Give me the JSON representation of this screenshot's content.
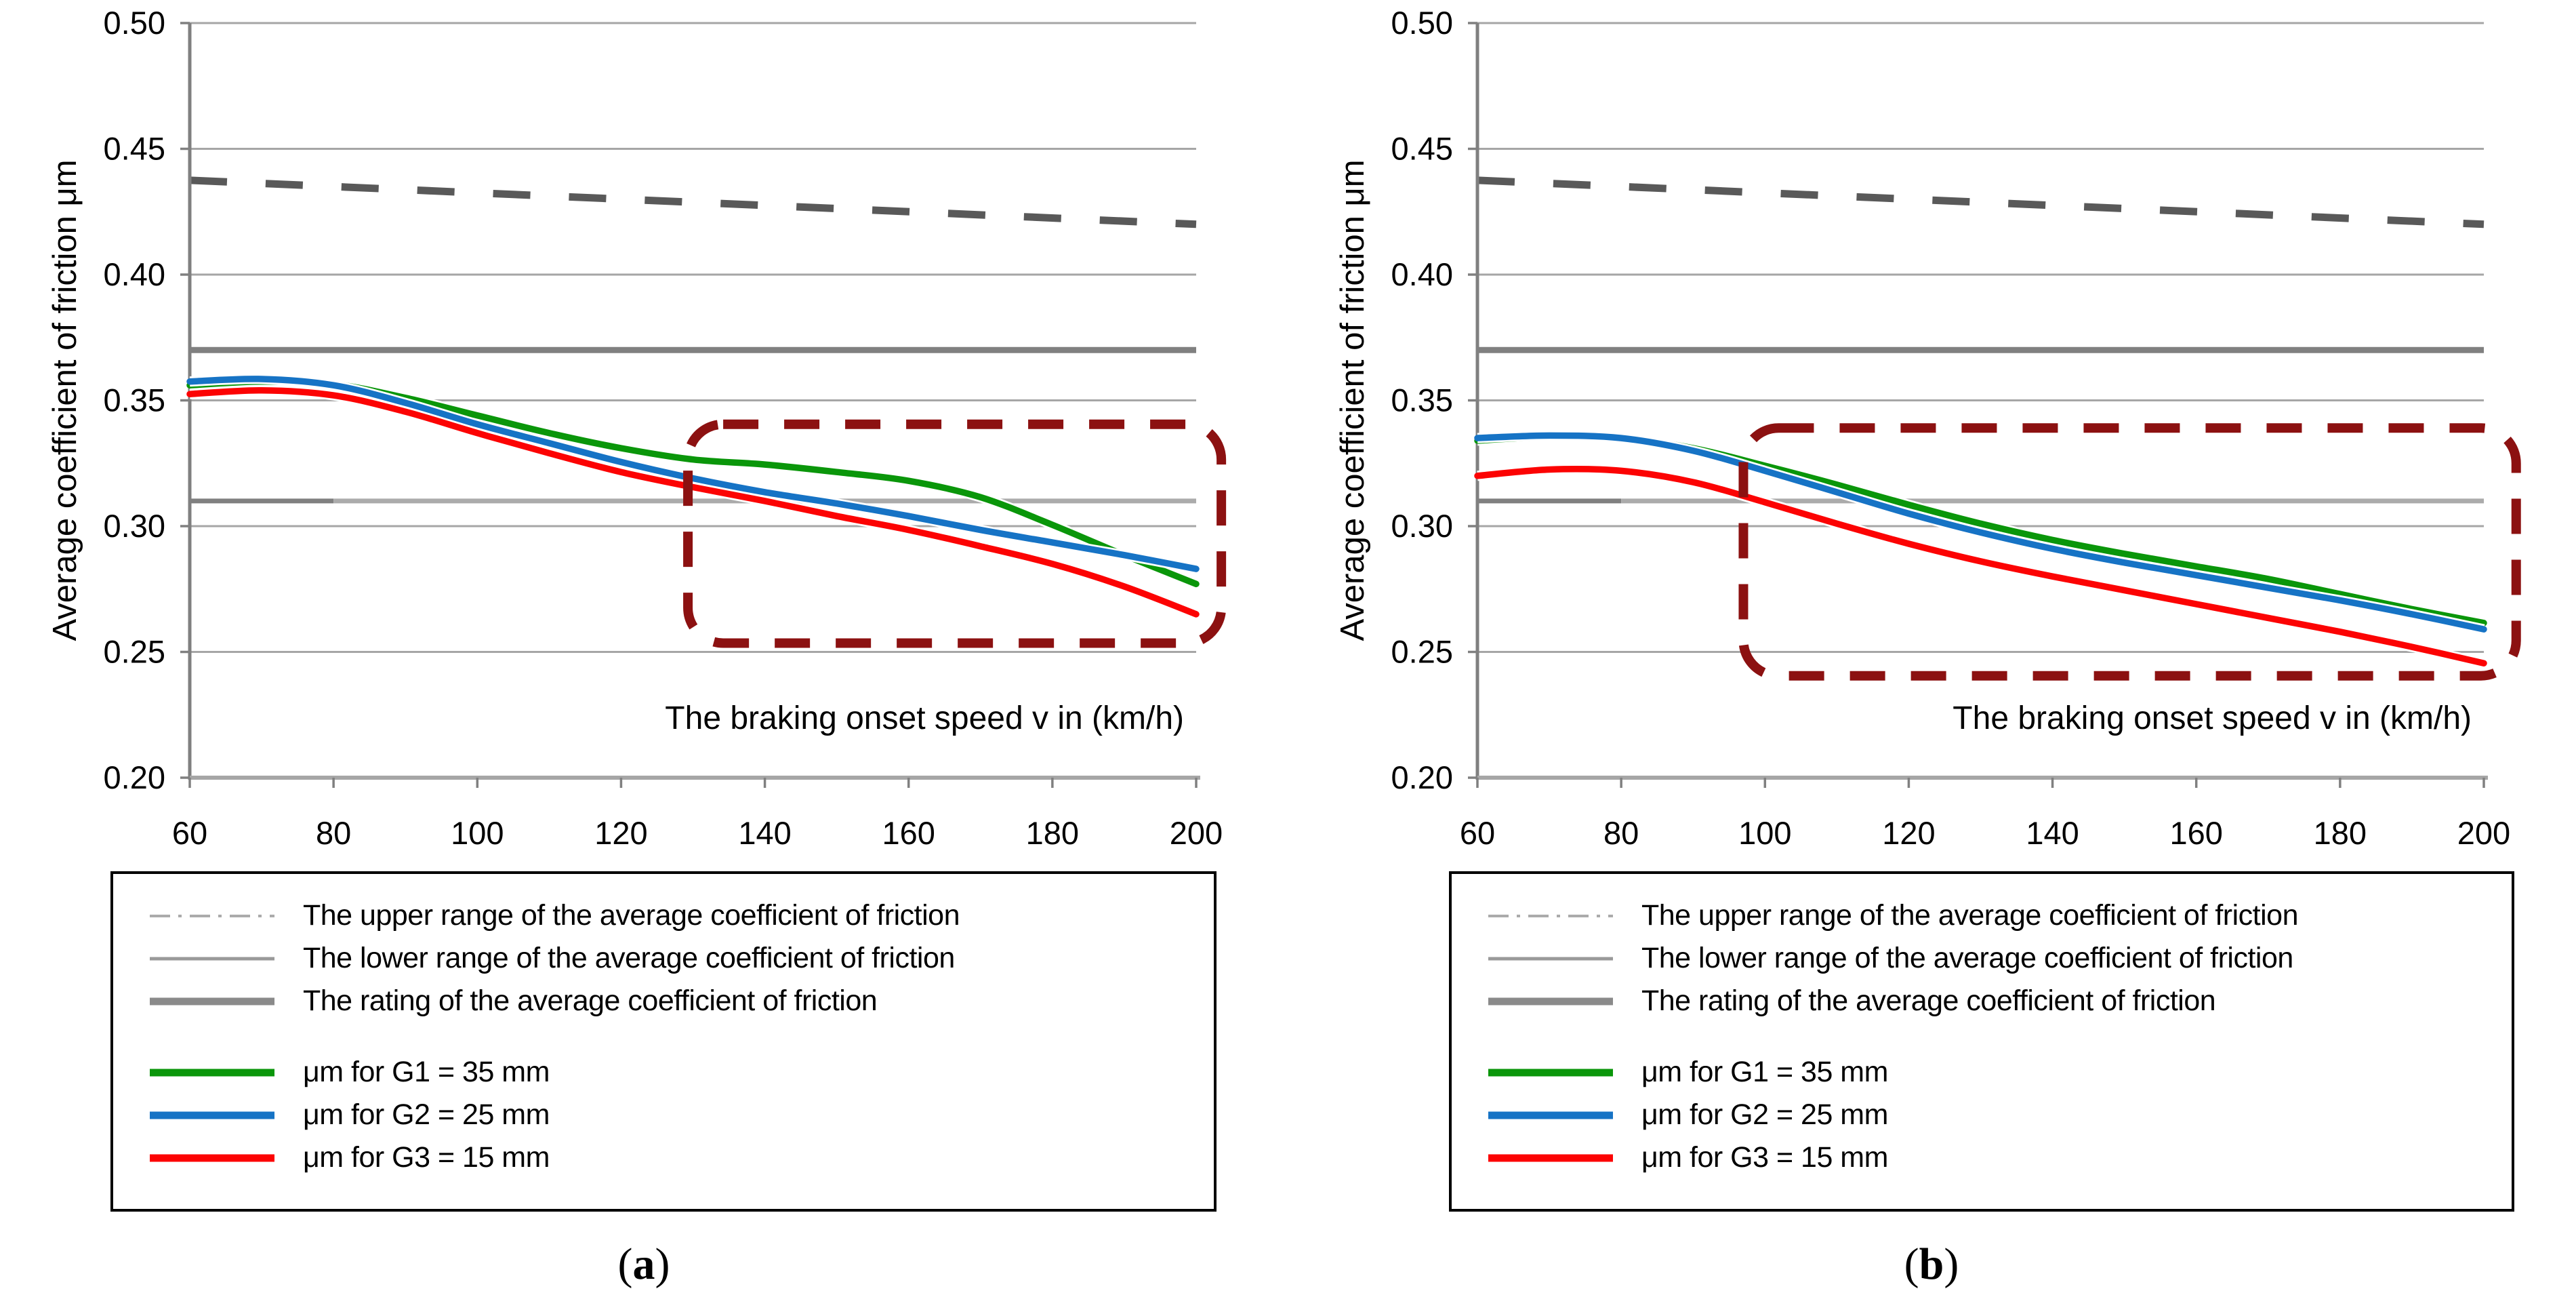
{
  "chart_data": [
    {
      "type": "line",
      "name": "a",
      "caption": {
        "open": "(",
        "letter": "a",
        "close": ")"
      },
      "x_axis": {
        "title": "The braking onset speed v in (km/h)",
        "min": 60,
        "max": 200,
        "ticks": [
          60,
          80,
          100,
          120,
          140,
          160,
          180,
          200
        ]
      },
      "y_axis": {
        "title": "Average coefficient of friction μm",
        "min": 0.2,
        "max": 0.5,
        "ticks": [
          {
            "v": 0.5,
            "label": "0.50"
          },
          {
            "v": 0.45,
            "label": "0.45"
          },
          {
            "v": 0.4,
            "label": "0.40"
          },
          {
            "v": 0.35,
            "label": "0.35"
          },
          {
            "v": 0.3,
            "label": "0.30"
          },
          {
            "v": 0.25,
            "label": "0.25"
          },
          {
            "v": 0.2,
            "label": "0.20"
          }
        ]
      },
      "grid": "horizontal",
      "x": [
        60,
        70,
        80,
        90,
        100,
        110,
        120,
        130,
        140,
        150,
        160,
        170,
        180,
        190,
        200
      ],
      "series": [
        {
          "name": "μm for G1 = 35 mm",
          "color": "#0A960A",
          "values": [
            0.356,
            0.3575,
            0.3565,
            0.351,
            0.344,
            0.337,
            0.331,
            0.3265,
            0.3245,
            0.3215,
            0.318,
            0.3115,
            0.3005,
            0.2885,
            0.277
          ]
        },
        {
          "name": "μm for G2 = 25 mm",
          "color": "#1673C5",
          "values": [
            0.3575,
            0.3585,
            0.356,
            0.349,
            0.3405,
            0.333,
            0.3255,
            0.319,
            0.3135,
            0.309,
            0.304,
            0.2985,
            0.2935,
            0.2885,
            0.283
          ]
        },
        {
          "name": "μm for G3 = 15 mm",
          "color": "#FC0303",
          "values": [
            0.3525,
            0.354,
            0.352,
            0.3455,
            0.337,
            0.329,
            0.3215,
            0.3155,
            0.31,
            0.304,
            0.2985,
            0.292,
            0.285,
            0.276,
            0.265
          ]
        }
      ],
      "ref_lines": {
        "upper_range": {
          "label": "The upper range of the average coefficient of friction",
          "style": "dashed",
          "color": "#595959",
          "points": [
            [
              60,
              0.4375
            ],
            [
              200,
              0.42
            ]
          ]
        },
        "rating": {
          "label": "The rating of the average coefficient of friction",
          "style": "solid-thick",
          "color": "#808080",
          "value": 0.37
        },
        "lower_range": {
          "label": "The lower range of the average coefficient of friction",
          "style": "solid",
          "value": 0.31,
          "segments": [
            {
              "from": 60,
              "to": 80,
              "color": "#808080"
            },
            {
              "from": 80,
              "to": 200,
              "color": "#ABABAB"
            }
          ]
        }
      },
      "highlight_box": {
        "v0": 129.3,
        "v1": 203.5,
        "u0": 0.2535,
        "u1": 0.3405,
        "color": "#8C1111"
      }
    },
    {
      "type": "line",
      "name": "b",
      "caption": {
        "open": "(",
        "letter": "b",
        "close": ")"
      },
      "x_axis": {
        "title": "The braking onset speed v in (km/h)",
        "min": 60,
        "max": 200,
        "ticks": [
          60,
          80,
          100,
          120,
          140,
          160,
          180,
          200
        ]
      },
      "y_axis": {
        "title": "Average coefficient of friction μm",
        "min": 0.2,
        "max": 0.5,
        "ticks": [
          {
            "v": 0.5,
            "label": "0.50"
          },
          {
            "v": 0.45,
            "label": "0.45"
          },
          {
            "v": 0.4,
            "label": "0.40"
          },
          {
            "v": 0.35,
            "label": "0.35"
          },
          {
            "v": 0.3,
            "label": "0.30"
          },
          {
            "v": 0.25,
            "label": "0.25"
          },
          {
            "v": 0.2,
            "label": "0.20"
          }
        ]
      },
      "grid": "horizontal",
      "x": [
        60,
        70,
        80,
        90,
        100,
        110,
        120,
        130,
        140,
        150,
        160,
        170,
        180,
        190,
        200
      ],
      "series": [
        {
          "name": "μm for G1 = 35 mm",
          "color": "#0A960A",
          "values": [
            0.334,
            0.3355,
            0.335,
            0.331,
            0.324,
            0.3165,
            0.3085,
            0.301,
            0.2945,
            0.289,
            0.284,
            0.279,
            0.273,
            0.267,
            0.2615
          ]
        },
        {
          "name": "μm for G2 = 25 mm",
          "color": "#1673C5",
          "values": [
            0.335,
            0.336,
            0.335,
            0.33,
            0.322,
            0.3135,
            0.305,
            0.2975,
            0.291,
            0.2855,
            0.2805,
            0.2755,
            0.2705,
            0.265,
            0.259
          ]
        },
        {
          "name": "μm for G3 = 15 mm",
          "color": "#FC0303",
          "values": [
            0.32,
            0.3225,
            0.322,
            0.3175,
            0.3095,
            0.301,
            0.293,
            0.286,
            0.28,
            0.2745,
            0.269,
            0.2635,
            0.258,
            0.252,
            0.2455
          ]
        }
      ],
      "ref_lines": {
        "upper_range": {
          "label": "The upper range of the average coefficient of friction",
          "style": "dashed",
          "color": "#595959",
          "points": [
            [
              60,
              0.4375
            ],
            [
              200,
              0.42
            ]
          ]
        },
        "rating": {
          "label": "The rating of the average coefficient of friction",
          "style": "solid-thick",
          "color": "#808080",
          "value": 0.37
        },
        "lower_range": {
          "label": "The lower range of the average coefficient of friction",
          "style": "solid",
          "value": 0.31,
          "segments": [
            {
              "from": 60,
              "to": 80,
              "color": "#808080"
            },
            {
              "from": 80,
              "to": 200,
              "color": "#ABABAB"
            }
          ]
        }
      },
      "highlight_box": {
        "v0": 97.0,
        "v1": 204.5,
        "u0": 0.2405,
        "u1": 0.339,
        "color": "#8C1111"
      }
    }
  ],
  "legend": {
    "items": [
      {
        "label": "The upper range of the average coefficient of friction",
        "style": "dash-dot",
        "color": "#ABABAB",
        "width": 4,
        "group": "reference"
      },
      {
        "label": "The lower range of the average coefficient of friction",
        "style": "solid",
        "color": "#999999",
        "width": 5,
        "group": "reference"
      },
      {
        "label": "The rating of the average coefficient of friction",
        "style": "solid",
        "color": "#8A8A8A",
        "width": 11,
        "group": "reference"
      },
      {
        "label": "μm for G1 = 35 mm",
        "style": "solid",
        "color": "#0A960A",
        "width": 11,
        "group": "series"
      },
      {
        "label": "μm for G2 = 25 mm",
        "style": "solid",
        "color": "#1673C5",
        "width": 11,
        "group": "series"
      },
      {
        "label": "μm for G3 = 15 mm",
        "style": "solid",
        "color": "#FC0303",
        "width": 11,
        "group": "series"
      }
    ]
  }
}
